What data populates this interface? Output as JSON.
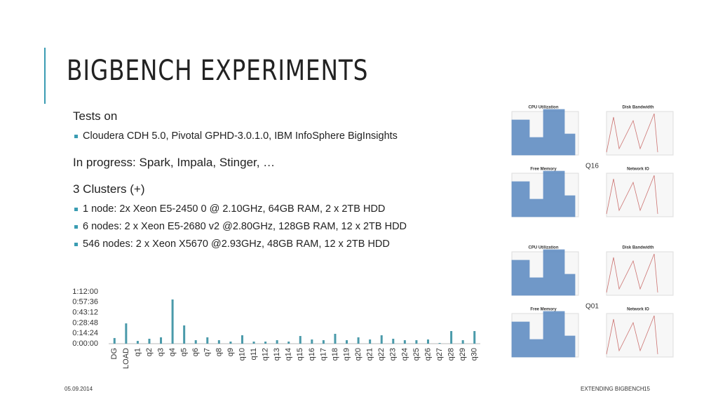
{
  "slide": {
    "title": "BIGBENCH EXPERIMENTS",
    "body": [
      {
        "level": 1,
        "text": "Tests on"
      },
      {
        "level": 2,
        "text": "Cloudera CDH 5.0, Pivotal GPHD-3.0.1.0, IBM InfoSphere BigInsights"
      },
      {
        "level": 1,
        "text": "In progress: Spark, Impala, Stinger, …"
      },
      {
        "level": 1,
        "text": "3 Clusters (+)"
      },
      {
        "level": 2,
        "text": "1 node: 2x Xeon E5-2450 0 @ 2.10GHz, 64GB RAM, 2 x 2TB HDD"
      },
      {
        "level": 2,
        "text": "6 nodes: 2 x Xeon E5-2680 v2 @2.80GHz, 128GB RAM, 12 x 2TB HDD"
      },
      {
        "level": 2,
        "text": "546 nodes: 2 x Xeon X5670 @2.93GHz, 48GB RAM, 12 x 2TB HDD"
      }
    ],
    "footer": {
      "date": "05.09.2014",
      "title": "EXTENDING BIGBENCH",
      "page": "15"
    },
    "thumbnail_groups": [
      {
        "label": "Q16",
        "charts": [
          "CPU Utilization",
          "Disk Bandwidth",
          "Free Memory",
          "Network IO"
        ]
      },
      {
        "label": "Q01",
        "charts": [
          "CPU Utilization",
          "Disk Bandwidth",
          "Free Memory",
          "Network IO"
        ]
      }
    ]
  },
  "chart_data": {
    "type": "bar",
    "color": "#4a9aaa",
    "categories": [
      "DG",
      "LOAD",
      "q1",
      "q2",
      "q3",
      "q4",
      "q5",
      "q6",
      "q7",
      "q8",
      "q9",
      "q10",
      "q11",
      "q12",
      "q13",
      "q14",
      "q15",
      "q16",
      "q17",
      "q18",
      "q19",
      "q20",
      "q21",
      "q22",
      "q23",
      "q24",
      "q25",
      "q26",
      "q27",
      "q28",
      "q29",
      "q30"
    ],
    "values": [
      470,
      1690,
      230,
      410,
      530,
      3680,
      1520,
      290,
      530,
      290,
      175,
      700,
      175,
      175,
      290,
      175,
      640,
      350,
      290,
      820,
      290,
      530,
      350,
      700,
      410,
      290,
      290,
      350,
      60,
      1050,
      290,
      1050
    ],
    "ylim": [
      0,
      4320
    ],
    "yticks": [
      {
        "value": 0,
        "label": "0:00:00"
      },
      {
        "value": 864,
        "label": "0:14:24"
      },
      {
        "value": 1728,
        "label": "0:28:48"
      },
      {
        "value": 2592,
        "label": "0:43:12"
      },
      {
        "value": 3456,
        "label": "0:57:36"
      },
      {
        "value": 4320,
        "label": "1:12:00"
      }
    ],
    "grid": false
  }
}
